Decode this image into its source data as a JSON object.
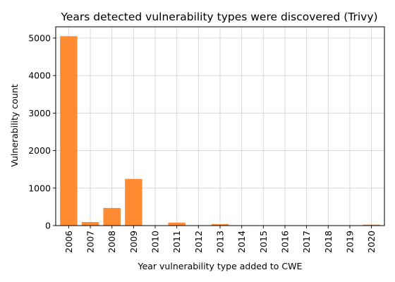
{
  "chart_data": {
    "type": "bar",
    "title": "Years detected vulnerability types were discovered (Trivy)",
    "xlabel": "Year vulnerability type added to CWE",
    "ylabel": "Vulnerability count",
    "categories": [
      "2006",
      "2007",
      "2008",
      "2009",
      "2010",
      "2011",
      "2012",
      "2013",
      "2014",
      "2015",
      "2016",
      "2017",
      "2018",
      "2019",
      "2020"
    ],
    "values": [
      5050,
      95,
      470,
      1245,
      0,
      80,
      0,
      40,
      0,
      0,
      0,
      0,
      0,
      0,
      25
    ],
    "ylim": [
      0,
      5300
    ],
    "yticks": [
      0,
      1000,
      2000,
      3000,
      4000,
      5000
    ],
    "grid": true,
    "bar_color": "#ff8c33"
  }
}
